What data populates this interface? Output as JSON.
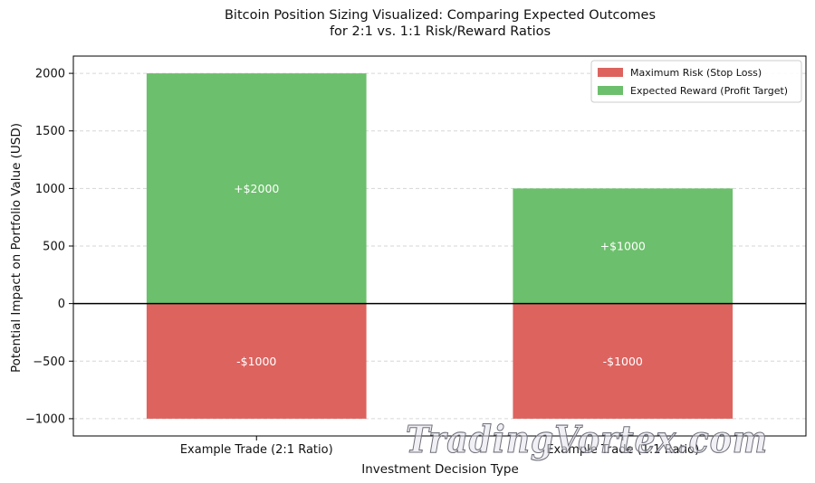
{
  "chart_data": {
    "type": "bar",
    "title_lines": [
      "Bitcoin Position Sizing Visualized: Comparing Expected Outcomes",
      "for 2:1 vs. 1:1 Risk/Reward Ratios"
    ],
    "xlabel": "Investment Decision Type",
    "ylabel": "Potential Impact on Portfolio Value (USD)",
    "categories": [
      "Example Trade (2:1 Ratio)",
      "Example Trade (1:1 Ratio)"
    ],
    "series": [
      {
        "name": "Maximum Risk (Stop Loss)",
        "values": [
          -1000,
          -1000
        ],
        "labels": [
          "-$1000",
          "-$1000"
        ],
        "color": "#dd635f"
      },
      {
        "name": "Expected Reward (Profit Target)",
        "values": [
          2000,
          1000
        ],
        "labels": [
          "+$2000",
          "+$1000"
        ],
        "color": "#6cbf6c"
      }
    ],
    "ylim": [
      -1150,
      2150
    ],
    "yticks": [
      -1000,
      -500,
      0,
      500,
      1000,
      1500,
      2000
    ],
    "ytick_labels": [
      "−1000",
      "−500",
      "0",
      "500",
      "1000",
      "1500",
      "2000"
    ],
    "grid": true,
    "legend_position": "top-right"
  },
  "watermark": "TradingVortex.com"
}
